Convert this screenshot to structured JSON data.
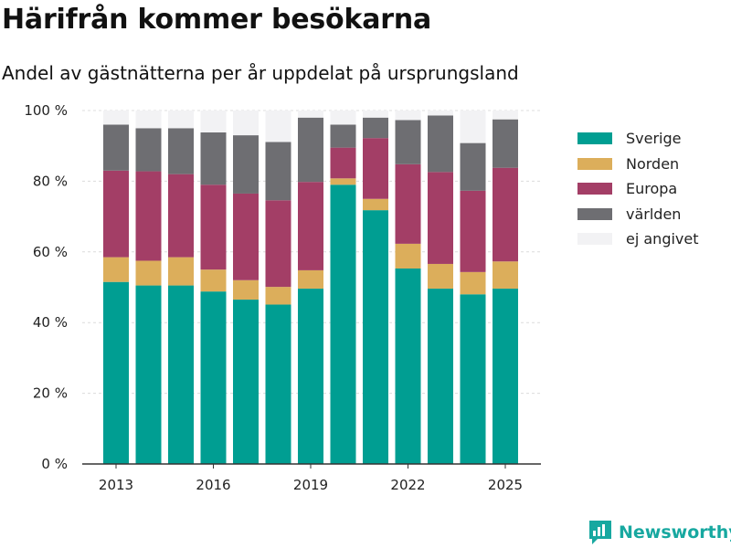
{
  "header": {
    "title": "Härifrån kommer besökarna",
    "subtitle": "Andel av gästnätterna per år uppdelat på ursprungsland"
  },
  "brand": {
    "name": "Newsworthy",
    "color": "#17a8a0"
  },
  "chart_data": {
    "type": "bar",
    "stacked": true,
    "categories": [
      2013,
      2014,
      2015,
      2016,
      2017,
      2018,
      2019,
      2020,
      2021,
      2022,
      2023,
      2024,
      2025
    ],
    "x_tick_labels": [
      "2013",
      "2016",
      "2019",
      "2022",
      "2025"
    ],
    "y_tick_labels": [
      "0 %",
      "20 %",
      "40 %",
      "60 %",
      "80 %",
      "100 %"
    ],
    "ylim": [
      0,
      100
    ],
    "grid": true,
    "legend_position": "right",
    "series": [
      {
        "name": "Sverige",
        "color": "#009e92",
        "values": [
          51.5,
          50.5,
          50.5,
          48.8,
          46.5,
          45.1,
          49.6,
          79.0,
          71.8,
          55.3,
          49.6,
          48.0,
          49.6
        ]
      },
      {
        "name": "Norden",
        "color": "#dcae5b",
        "values": [
          7.0,
          7.0,
          8.0,
          6.2,
          5.5,
          5.0,
          5.2,
          1.8,
          3.2,
          7.0,
          7.0,
          6.3,
          7.7
        ]
      },
      {
        "name": "Europa",
        "color": "#a33e66",
        "values": [
          24.5,
          25.3,
          23.5,
          24.0,
          24.5,
          24.5,
          25.0,
          8.7,
          17.2,
          22.5,
          26.0,
          23.0,
          26.5
        ]
      },
      {
        "name": "världen",
        "color": "#6e6e72",
        "values": [
          13.0,
          12.2,
          13.0,
          14.8,
          16.5,
          16.5,
          18.2,
          6.5,
          5.8,
          12.5,
          16.0,
          13.5,
          13.7
        ]
      },
      {
        "name": "ej angivet",
        "color": "#f2f2f4",
        "values": [
          4.0,
          5.0,
          5.0,
          6.2,
          7.0,
          8.9,
          2.0,
          4.0,
          2.0,
          2.7,
          1.4,
          9.2,
          2.5
        ]
      }
    ]
  }
}
